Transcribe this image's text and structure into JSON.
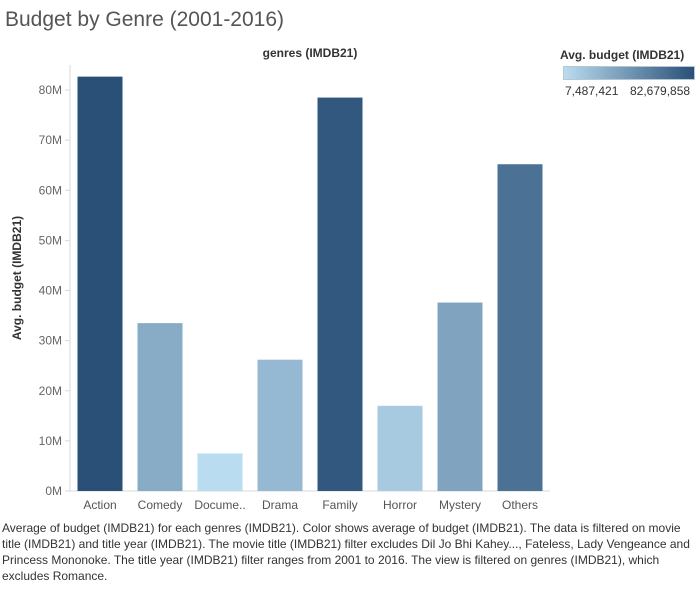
{
  "title": "Budget by Genre (2001-2016)",
  "legend": {
    "title": "Avg. budget (IMDB21)",
    "min_label": "7,487,421",
    "max_label": "82,679,858",
    "color_low": "#b9dcf0",
    "color_high": "#2a5078"
  },
  "caption": "Average of budget (IMDB21) for each genres (IMDB21).  Color shows average of budget (IMDB21). The data is filtered on movie title (IMDB21) and title year (IMDB21). The movie title (IMDB21) filter excludes Dil Jo Bhi Kahey..., Fateless, Lady Vengeance and Princess Mononoke. The title year (IMDB21) filter ranges from 2001 to 2016. The view is filtered on genres (IMDB21), which excludes Romance.",
  "chart_data": {
    "type": "bar",
    "title": "Budget by Genre (2001-2016)",
    "column_header": "genres (IMDB21)",
    "xlabel": "",
    "ylabel": "Avg. budget (IMDB21)",
    "categories": [
      "Action",
      "Comedy",
      "Docume..",
      "Drama",
      "Family",
      "Horror",
      "Mystery",
      "Others"
    ],
    "values": [
      82679858,
      33500000,
      7487421,
      26200000,
      78500000,
      17000000,
      37600000,
      65200000
    ],
    "ylim": [
      0,
      85000000
    ],
    "yticks": [
      0,
      10000000,
      20000000,
      30000000,
      40000000,
      50000000,
      60000000,
      70000000,
      80000000
    ],
    "ytick_labels": [
      "0M",
      "10M",
      "20M",
      "30M",
      "40M",
      "50M",
      "60M",
      "70M",
      "80M"
    ],
    "grid": false,
    "legend_position": "top-right"
  }
}
